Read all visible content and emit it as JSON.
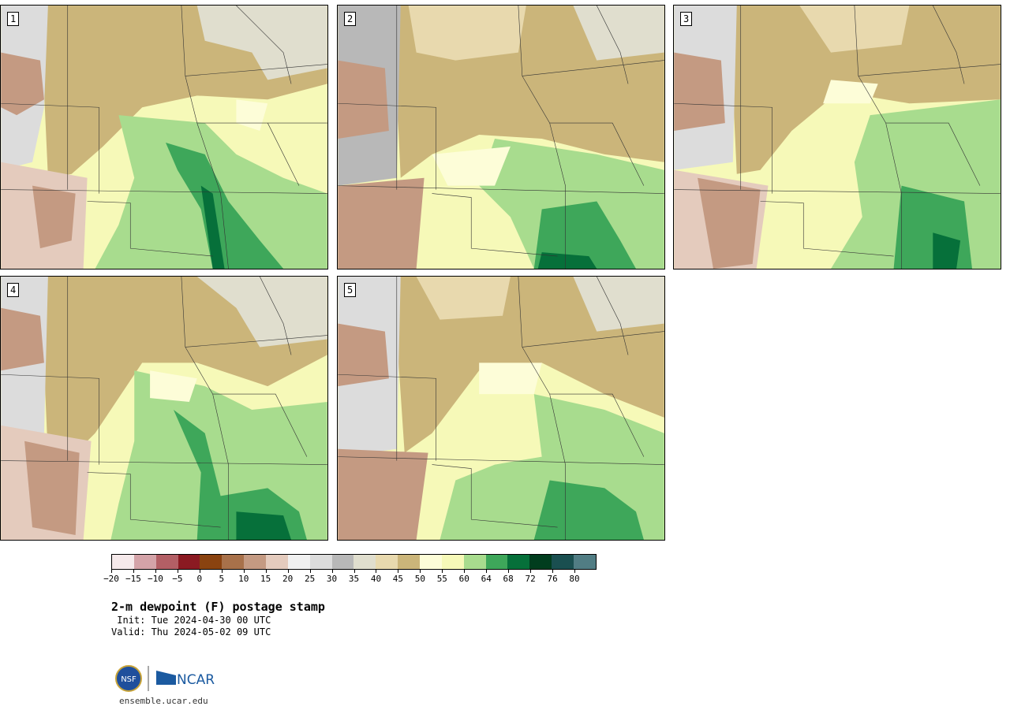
{
  "panels": [
    {
      "number": "1"
    },
    {
      "number": "2"
    },
    {
      "number": "3"
    },
    {
      "number": "4"
    },
    {
      "number": "5"
    }
  ],
  "colorbar": {
    "colors": [
      "#f5e9ea",
      "#d4a3a8",
      "#b35f65",
      "#8b1a22",
      "#8a4310",
      "#a8714a",
      "#c49a82",
      "#e4cbbd",
      "#f0f0f0",
      "#dcdcdc",
      "#b8b8b8",
      "#e0dece",
      "#e8d9ae",
      "#cbb57a",
      "#fdfdd8",
      "#f6f9b8",
      "#a8dc8e",
      "#3ea75a",
      "#06703a",
      "#013d1e",
      "#1a4f50",
      "#517d84"
    ],
    "tick_labels": [
      "−20",
      "−15",
      "−10",
      "−5",
      "0",
      "5",
      "10",
      "15",
      "20",
      "25",
      "30",
      "35",
      "40",
      "45",
      "50",
      "55",
      "60",
      "64",
      "68",
      "72",
      "76",
      "80"
    ]
  },
  "title": "2-m dewpoint (F) postage stamp",
  "init": " Init: Tue 2024-04-30 00 UTC",
  "valid": "Valid: Thu 2024-05-02 09 UTC",
  "logo": {
    "nsf_text": "NSF",
    "ncar_text": "NCAR"
  },
  "url": "ensemble.ucar.edu"
}
